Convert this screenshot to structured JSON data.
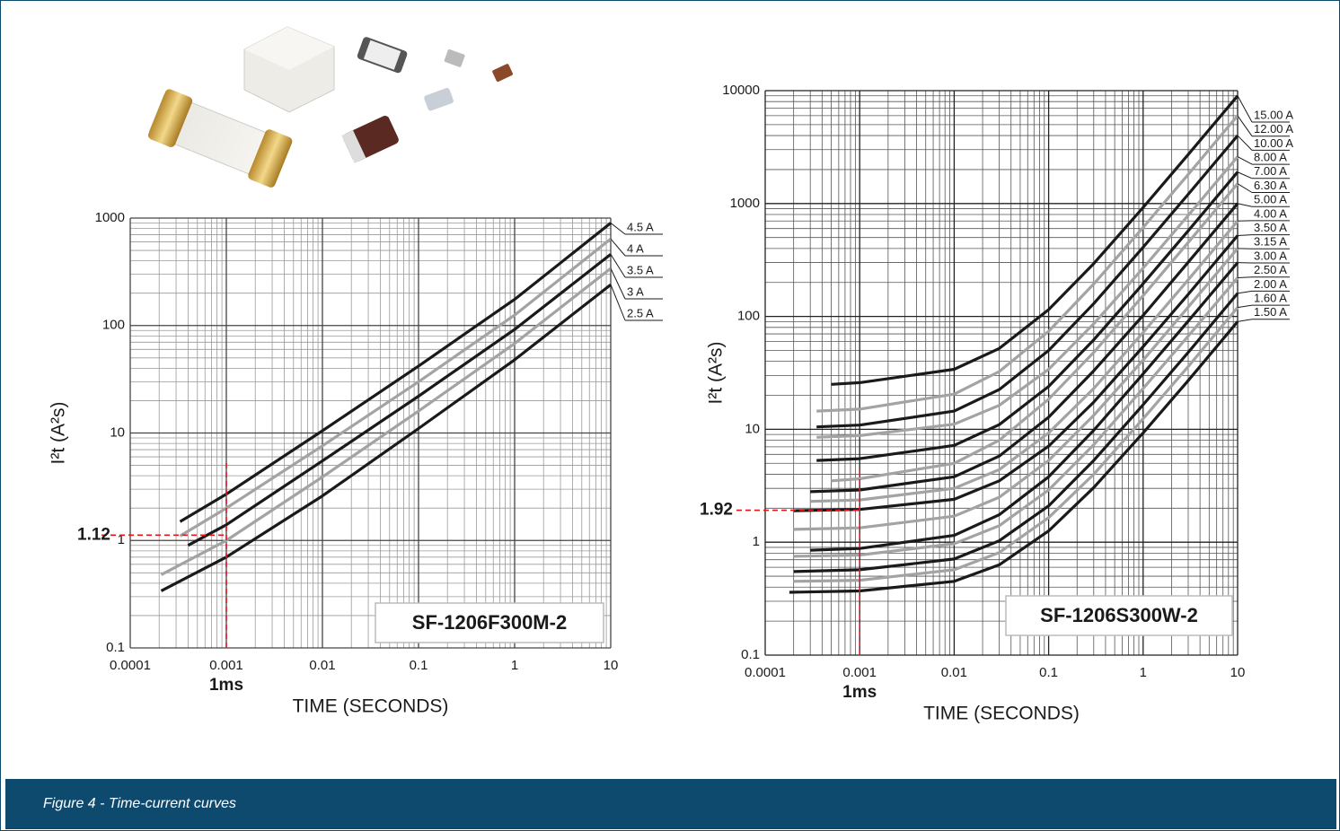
{
  "chart_data": [
    {
      "type": "line",
      "xlabel": "TIME (SECONDS)",
      "ylabel": "I²t (A²s)",
      "xscale": "log",
      "yscale": "log",
      "xlim": [
        0.0001,
        10
      ],
      "ylim": [
        0.1,
        1000
      ],
      "xticks": [
        0.0001,
        0.001,
        0.01,
        0.1,
        1,
        10
      ],
      "yticks": [
        0.1,
        1,
        10,
        100,
        1000
      ],
      "grid": true,
      "model": "SF-1206F300M-2",
      "marker": {
        "x": 0.001,
        "y": 1.12,
        "x_label": "1ms",
        "y_label": "1.12",
        "color": "#e8141b"
      },
      "series": [
        {
          "name": "4.5 A",
          "color": "#1a1a1a",
          "x": [
            0.00033,
            0.001,
            0.01,
            0.1,
            1,
            10
          ],
          "values": [
            1.5,
            2.7,
            10.5,
            42,
            175,
            900
          ]
        },
        {
          "name": "4 A",
          "color": "#a3a3a3",
          "x": [
            0.00033,
            0.001,
            0.01,
            0.1,
            1,
            10
          ],
          "values": [
            1.1,
            2.0,
            7.6,
            30,
            125,
            640
          ]
        },
        {
          "name": "3.5 A",
          "color": "#1a1a1a",
          "x": [
            0.0004,
            0.001,
            0.01,
            0.1,
            1,
            10
          ],
          "values": [
            0.9,
            1.4,
            5.5,
            22,
            92,
            460
          ]
        },
        {
          "name": "3 A",
          "color": "#a3a3a3",
          "x": [
            0.00021,
            0.001,
            0.01,
            0.1,
            1,
            10
          ],
          "values": [
            0.48,
            1.0,
            3.9,
            16,
            68,
            340
          ]
        },
        {
          "name": "2.5 A",
          "color": "#1a1a1a",
          "x": [
            0.00021,
            0.001,
            0.01,
            0.1,
            1,
            10
          ],
          "values": [
            0.34,
            0.7,
            2.6,
            11,
            48,
            240
          ]
        }
      ]
    },
    {
      "type": "line",
      "xlabel": "TIME (SECONDS)",
      "ylabel": "I²t (A²s)",
      "xscale": "log",
      "yscale": "log",
      "xlim": [
        0.0001,
        10
      ],
      "ylim": [
        0.1,
        10000
      ],
      "xticks": [
        0.0001,
        0.001,
        0.01,
        0.1,
        1,
        10
      ],
      "yticks": [
        0.1,
        1,
        10,
        100,
        1000,
        10000
      ],
      "grid": true,
      "model": "SF-1206S300W-2",
      "marker": {
        "x": 0.001,
        "y": 1.92,
        "x_label": "1ms",
        "y_label": "1.92",
        "color": "#e8141b"
      },
      "series": [
        {
          "name": "15.00 A",
          "color": "#1a1a1a",
          "x": [
            0.0005,
            0.001,
            0.01,
            0.03,
            0.1,
            0.3,
            1,
            3,
            10
          ],
          "values": [
            25,
            25.9,
            34,
            52,
            115,
            294,
            922,
            2717,
            9000
          ]
        },
        {
          "name": "12.00 A",
          "color": "#a3a3a3",
          "x": [
            0.00035,
            0.001,
            0.01,
            0.03,
            0.1,
            0.3,
            1,
            3,
            10
          ],
          "values": [
            14.5,
            15.1,
            20.5,
            32.5,
            74,
            194,
            613,
            1810,
            6000
          ]
        },
        {
          "name": "10.00 A",
          "color": "#1a1a1a",
          "x": [
            0.00035,
            0.001,
            0.01,
            0.03,
            0.1,
            0.3,
            1,
            3,
            10
          ],
          "values": [
            10.5,
            10.9,
            14.5,
            22.5,
            50,
            130,
            410,
            1208,
            4000
          ]
        },
        {
          "name": "8.00 A",
          "color": "#a3a3a3",
          "x": [
            0.00035,
            0.001,
            0.01,
            0.03,
            0.1,
            0.3,
            1,
            3,
            10
          ],
          "values": [
            8.5,
            8.8,
            11.1,
            16.3,
            34,
            86,
            268,
            786,
            2600
          ]
        },
        {
          "name": "7.00 A",
          "color": "#1a1a1a",
          "x": [
            0.00035,
            0.001,
            0.01,
            0.03,
            0.1,
            0.3,
            1,
            3,
            10
          ],
          "values": [
            5.3,
            5.5,
            7.2,
            11,
            24,
            62,
            195,
            573,
            1900
          ]
        },
        {
          "name": "6.30 A",
          "color": "#a3a3a3",
          "x": [
            0.0005,
            0.001,
            0.01,
            0.03,
            0.1,
            0.3,
            1,
            3,
            10
          ],
          "values": [
            3.5,
            3.65,
            5,
            8,
            18.5,
            48,
            153,
            452,
            1500
          ]
        },
        {
          "name": "5.00 A",
          "color": "#1a1a1a",
          "x": [
            0.0003,
            0.001,
            0.01,
            0.03,
            0.1,
            0.3,
            1,
            3,
            10
          ],
          "values": [
            2.8,
            2.9,
            3.8,
            5.8,
            12.8,
            33,
            102,
            302,
            1000
          ]
        },
        {
          "name": "4.00 A",
          "color": "#a3a3a3",
          "x": [
            0.0003,
            0.001,
            0.01,
            0.03,
            0.1,
            0.3,
            1,
            3,
            10
          ],
          "values": [
            2.3,
            2.37,
            3,
            4.4,
            9.3,
            23,
            72,
            211,
            700
          ]
        },
        {
          "name": "3.50 A",
          "color": "#1a1a1a",
          "x": [
            0.0002,
            0.001,
            0.01,
            0.03,
            0.1,
            0.3,
            1,
            3,
            10
          ],
          "values": [
            1.9,
            1.95,
            2.4,
            3.5,
            7.1,
            17.4,
            54,
            157,
            520
          ]
        },
        {
          "name": "3.15 A",
          "color": "#a3a3a3",
          "x": [
            0.0002,
            0.001,
            0.01,
            0.03,
            0.1,
            0.3,
            1,
            3,
            10
          ],
          "values": [
            1.3,
            1.34,
            1.7,
            2.5,
            5.3,
            13.3,
            41,
            121,
            400
          ]
        },
        {
          "name": "3.00 A",
          "color": "#1a1a1a",
          "x": [
            0.0003,
            0.001,
            0.01,
            0.03,
            0.1,
            0.3,
            1,
            3,
            10
          ],
          "values": [
            0.85,
            0.88,
            1.15,
            1.75,
            3.8,
            9.8,
            31,
            91,
            300
          ]
        },
        {
          "name": "2.50 A",
          "color": "#a3a3a3",
          "x": [
            0.0002,
            0.001,
            0.01,
            0.03,
            0.1,
            0.3,
            1,
            3,
            10
          ],
          "values": [
            0.75,
            0.77,
            0.97,
            1.4,
            2.9,
            7.3,
            23,
            67,
            220
          ]
        },
        {
          "name": "2.00 A",
          "color": "#1a1a1a",
          "x": [
            0.0002,
            0.001,
            0.01,
            0.03,
            0.1,
            0.3,
            1,
            3,
            10
          ],
          "values": [
            0.55,
            0.57,
            0.71,
            1.03,
            2.1,
            5.3,
            16.5,
            48,
            160
          ]
        },
        {
          "name": "1.60 A",
          "color": "#a3a3a3",
          "x": [
            0.0002,
            0.001,
            0.01,
            0.03,
            0.1,
            0.3,
            1,
            3,
            10
          ],
          "values": [
            0.45,
            0.46,
            0.57,
            0.81,
            1.65,
            4.0,
            12.4,
            36,
            120
          ]
        },
        {
          "name": "1.50 A",
          "color": "#1a1a1a",
          "x": [
            0.00018,
            0.001,
            0.01,
            0.03,
            0.1,
            0.3,
            1,
            3,
            10
          ],
          "values": [
            0.36,
            0.37,
            0.45,
            0.63,
            1.26,
            3.05,
            9.3,
            27,
            90
          ]
        }
      ]
    }
  ],
  "caption": "Figure 4 - Time-current curves"
}
